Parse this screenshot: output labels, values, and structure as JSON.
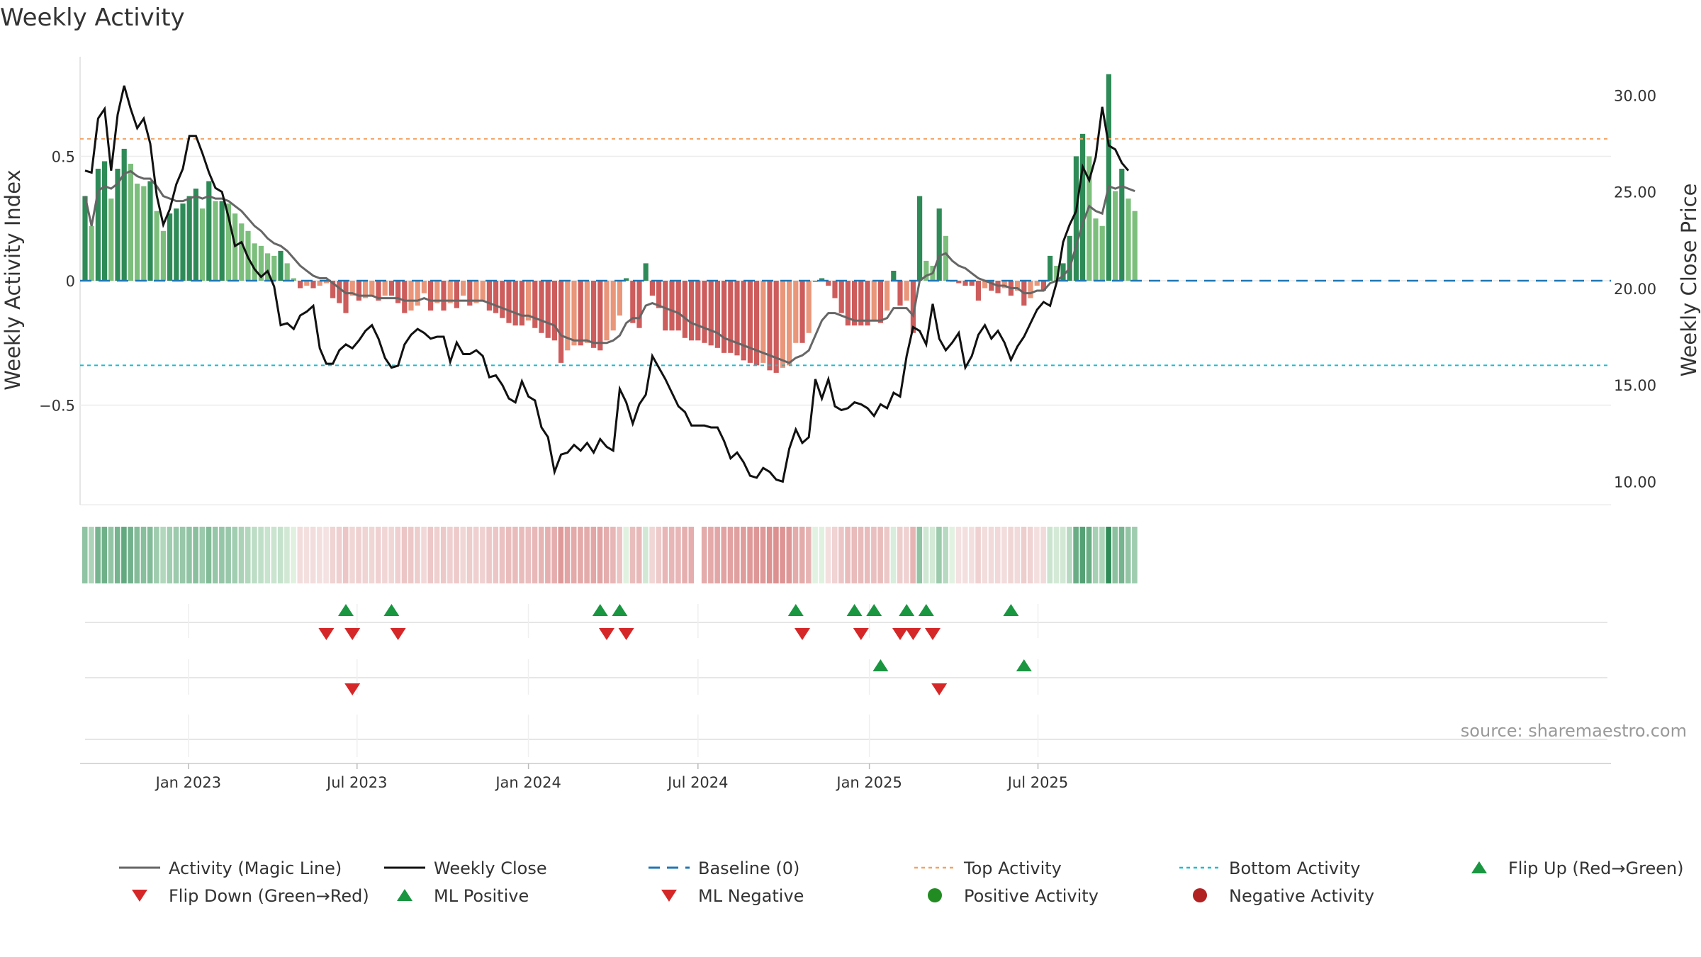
{
  "title": "Weekly Activity",
  "source": "source: sharemaestro.com",
  "colors": {
    "strong_green": "#2e8b57",
    "light_green": "#7cbf7c",
    "strong_red": "#cd5c5c",
    "light_red": "#e9967a",
    "magic_line": "#666666",
    "close_line": "#111111",
    "baseline": "#1f77b4",
    "top_line": "#f4a261",
    "bottom_line": "#17becf",
    "marker_up": "#1a9641",
    "marker_down": "#d62728",
    "pos_dot": "#228b22",
    "neg_dot": "#b22222"
  },
  "chart_data": {
    "type": "bar",
    "x_start": "2022-09-12",
    "x_step_days": 7,
    "x_ticks": [
      "Jan 2023",
      "Jul 2023",
      "Jan 2024",
      "Jul 2024",
      "Jan 2025",
      "Jul 2025"
    ],
    "x_tick_dates": [
      "2023-01-01",
      "2023-07-01",
      "2024-01-01",
      "2024-07-01",
      "2025-01-01",
      "2025-07-01"
    ],
    "y_left": {
      "label": "Weekly Activity Index",
      "ticks": [
        0.5,
        0,
        -0.5
      ],
      "tick_labels": [
        "0.5",
        "0",
        "−0.5"
      ],
      "lim": [
        -0.9,
        0.9
      ]
    },
    "y_right": {
      "label": "Weekly Close Price",
      "ticks": [
        30,
        25,
        20,
        15,
        10
      ],
      "tick_labels": [
        "30.00",
        "25.00",
        "20.00",
        "15.00",
        "10.00"
      ],
      "lim": [
        8.8,
        32.0
      ]
    },
    "top_activity": 0.57,
    "bottom_activity": -0.34,
    "activity": [
      0.34,
      0.22,
      0.45,
      0.48,
      0.33,
      0.45,
      0.53,
      0.47,
      0.39,
      0.38,
      0.4,
      0.28,
      0.2,
      0.27,
      0.29,
      0.31,
      0.34,
      0.37,
      0.29,
      0.4,
      0.32,
      0.32,
      0.31,
      0.27,
      0.23,
      0.2,
      0.15,
      0.14,
      0.11,
      0.1,
      0.12,
      0.07,
      0.01,
      -0.03,
      -0.02,
      -0.03,
      -0.02,
      -0.01,
      -0.07,
      -0.09,
      -0.13,
      -0.06,
      -0.08,
      -0.07,
      -0.06,
      -0.08,
      -0.06,
      -0.06,
      -0.09,
      -0.13,
      -0.12,
      -0.1,
      -0.05,
      -0.12,
      -0.09,
      -0.12,
      -0.09,
      -0.11,
      -0.06,
      -0.1,
      -0.09,
      -0.08,
      -0.12,
      -0.13,
      -0.15,
      -0.17,
      -0.18,
      -0.18,
      -0.16,
      -0.19,
      -0.21,
      -0.23,
      -0.24,
      -0.33,
      -0.28,
      -0.26,
      -0.26,
      -0.25,
      -0.27,
      -0.28,
      -0.24,
      -0.2,
      -0.14,
      0.01,
      -0.17,
      -0.19,
      0.07,
      -0.06,
      -0.11,
      -0.2,
      -0.2,
      -0.2,
      -0.23,
      -0.24,
      -0.24,
      -0.25,
      -0.26,
      -0.27,
      -0.29,
      -0.29,
      -0.3,
      -0.32,
      -0.33,
      -0.34,
      -0.33,
      -0.36,
      -0.37,
      -0.35,
      -0.34,
      -0.25,
      -0.25,
      -0.21,
      0.0,
      0.01,
      -0.02,
      -0.07,
      -0.13,
      -0.18,
      -0.18,
      -0.18,
      -0.18,
      -0.16,
      -0.17,
      -0.12,
      0.04,
      -0.1,
      -0.08,
      -0.21,
      0.34,
      0.08,
      0.06,
      0.29,
      0.18,
      0.0,
      -0.01,
      -0.02,
      -0.02,
      -0.08,
      -0.03,
      -0.04,
      -0.05,
      -0.03,
      -0.06,
      -0.04,
      -0.1,
      -0.07,
      -0.02,
      -0.04,
      0.1,
      0.06,
      0.07,
      0.18,
      0.5,
      0.59,
      0.5,
      0.25,
      0.22,
      0.83,
      0.36,
      0.45,
      0.33,
      0.28
    ],
    "magic_line": [
      0.34,
      0.22,
      0.36,
      0.38,
      0.37,
      0.39,
      0.43,
      0.44,
      0.42,
      0.41,
      0.41,
      0.38,
      0.34,
      0.33,
      0.32,
      0.32,
      0.33,
      0.34,
      0.33,
      0.34,
      0.33,
      0.33,
      0.32,
      0.3,
      0.28,
      0.25,
      0.22,
      0.2,
      0.17,
      0.15,
      0.14,
      0.12,
      0.09,
      0.06,
      0.04,
      0.02,
      0.01,
      0.01,
      -0.01,
      -0.03,
      -0.05,
      -0.05,
      -0.06,
      -0.06,
      -0.06,
      -0.07,
      -0.07,
      -0.07,
      -0.07,
      -0.08,
      -0.08,
      -0.08,
      -0.07,
      -0.08,
      -0.08,
      -0.08,
      -0.08,
      -0.08,
      -0.08,
      -0.08,
      -0.08,
      -0.08,
      -0.09,
      -0.1,
      -0.11,
      -0.12,
      -0.13,
      -0.14,
      -0.14,
      -0.15,
      -0.16,
      -0.17,
      -0.18,
      -0.22,
      -0.23,
      -0.24,
      -0.24,
      -0.24,
      -0.25,
      -0.25,
      -0.25,
      -0.24,
      -0.22,
      -0.17,
      -0.15,
      -0.15,
      -0.1,
      -0.09,
      -0.1,
      -0.11,
      -0.12,
      -0.13,
      -0.15,
      -0.17,
      -0.18,
      -0.19,
      -0.2,
      -0.21,
      -0.23,
      -0.24,
      -0.25,
      -0.26,
      -0.27,
      -0.28,
      -0.29,
      -0.3,
      -0.31,
      -0.32,
      -0.33,
      -0.31,
      -0.3,
      -0.28,
      -0.22,
      -0.16,
      -0.13,
      -0.13,
      -0.14,
      -0.15,
      -0.16,
      -0.16,
      -0.16,
      -0.16,
      -0.16,
      -0.15,
      -0.11,
      -0.11,
      -0.11,
      -0.14,
      0.0,
      0.02,
      0.03,
      0.1,
      0.11,
      0.08,
      0.06,
      0.05,
      0.03,
      0.01,
      0.0,
      -0.01,
      -0.02,
      -0.02,
      -0.03,
      -0.03,
      -0.05,
      -0.05,
      -0.04,
      -0.04,
      -0.01,
      0.0,
      0.02,
      0.05,
      0.14,
      0.23,
      0.3,
      0.28,
      0.27,
      0.38,
      0.37,
      0.38,
      0.37,
      0.36
    ],
    "weekly_close": [
      26.1,
      26.0,
      28.8,
      29.3,
      26.1,
      29.0,
      30.5,
      29.3,
      28.3,
      28.8,
      27.5,
      24.8,
      23.3,
      24.1,
      25.4,
      26.2,
      27.9,
      27.9,
      27.0,
      26.0,
      25.2,
      25.0,
      23.7,
      22.2,
      22.4,
      21.6,
      21.0,
      20.6,
      20.9,
      20.1,
      18.1,
      18.2,
      17.9,
      18.6,
      18.8,
      19.1,
      16.9,
      16.1,
      16.1,
      16.8,
      17.1,
      16.9,
      17.3,
      17.8,
      18.1,
      17.4,
      16.4,
      15.9,
      16.0,
      17.1,
      17.6,
      17.9,
      17.7,
      17.4,
      17.5,
      17.5,
      16.2,
      17.2,
      16.6,
      16.6,
      16.8,
      16.5,
      15.4,
      15.5,
      15.0,
      14.3,
      14.1,
      15.2,
      14.4,
      14.2,
      12.8,
      12.3,
      10.5,
      11.4,
      11.5,
      11.9,
      11.6,
      12.0,
      11.5,
      12.2,
      11.8,
      11.6,
      14.8,
      14.1,
      13.0,
      14.0,
      14.5,
      16.5,
      15.9,
      15.3,
      14.6,
      13.9,
      13.6,
      12.9,
      12.9,
      12.9,
      12.8,
      12.8,
      12.1,
      11.2,
      11.5,
      11.0,
      10.3,
      10.2,
      10.7,
      10.5,
      10.1,
      10.0,
      11.7,
      12.7,
      12.0,
      12.3,
      15.3,
      14.3,
      15.3,
      13.9,
      13.7,
      13.8,
      14.1,
      14.0,
      13.8,
      13.4,
      14.0,
      13.8,
      14.6,
      14.4,
      16.5,
      18.0,
      17.8,
      17.1,
      19.2,
      17.4,
      16.8,
      17.2,
      17.7,
      15.9,
      16.5,
      17.6,
      18.1,
      17.4,
      17.8,
      17.2,
      16.3,
      17.0,
      17.5,
      18.2,
      18.9,
      19.3,
      19.1,
      20.3,
      22.4,
      23.3,
      24.0,
      26.3,
      25.6,
      26.8,
      29.4,
      27.4,
      27.2,
      26.5,
      26.1
    ]
  },
  "signals": {
    "flip_up": [
      "2023-06-19",
      "2023-08-07",
      "2024-03-18",
      "2024-04-08",
      "2024-10-14",
      "2024-12-16",
      "2025-01-06",
      "2025-02-10",
      "2025-03-03",
      "2025-06-02"
    ],
    "flip_down": [
      "2023-05-29",
      "2023-06-26",
      "2023-08-14",
      "2024-03-25",
      "2024-04-15",
      "2024-10-21",
      "2024-12-23",
      "2025-02-03",
      "2025-02-17",
      "2025-03-10"
    ],
    "ml_positive": [
      "2025-01-13",
      "2025-06-16"
    ],
    "ml_negative": [
      "2023-06-26",
      "2025-03-17"
    ],
    "positive_activity": [],
    "negative_activity": []
  },
  "legend": [
    {
      "label": "Activity (Magic Line)",
      "key": "magic_line"
    },
    {
      "label": "Weekly Close",
      "key": "weekly_close"
    },
    {
      "label": "Baseline (0)",
      "key": "baseline"
    },
    {
      "label": "Top Activity",
      "key": "top"
    },
    {
      "label": "Bottom Activity",
      "key": "bottom"
    },
    {
      "label": "Flip Up (Red→Green)",
      "key": "flip_up"
    },
    {
      "label": "Flip Down (Green→Red)",
      "key": "flip_down"
    },
    {
      "label": "ML Positive",
      "key": "ml_positive"
    },
    {
      "label": "ML Negative",
      "key": "ml_negative"
    },
    {
      "label": "Positive Activity",
      "key": "pos_dot"
    },
    {
      "label": "Negative Activity",
      "key": "neg_dot"
    }
  ]
}
